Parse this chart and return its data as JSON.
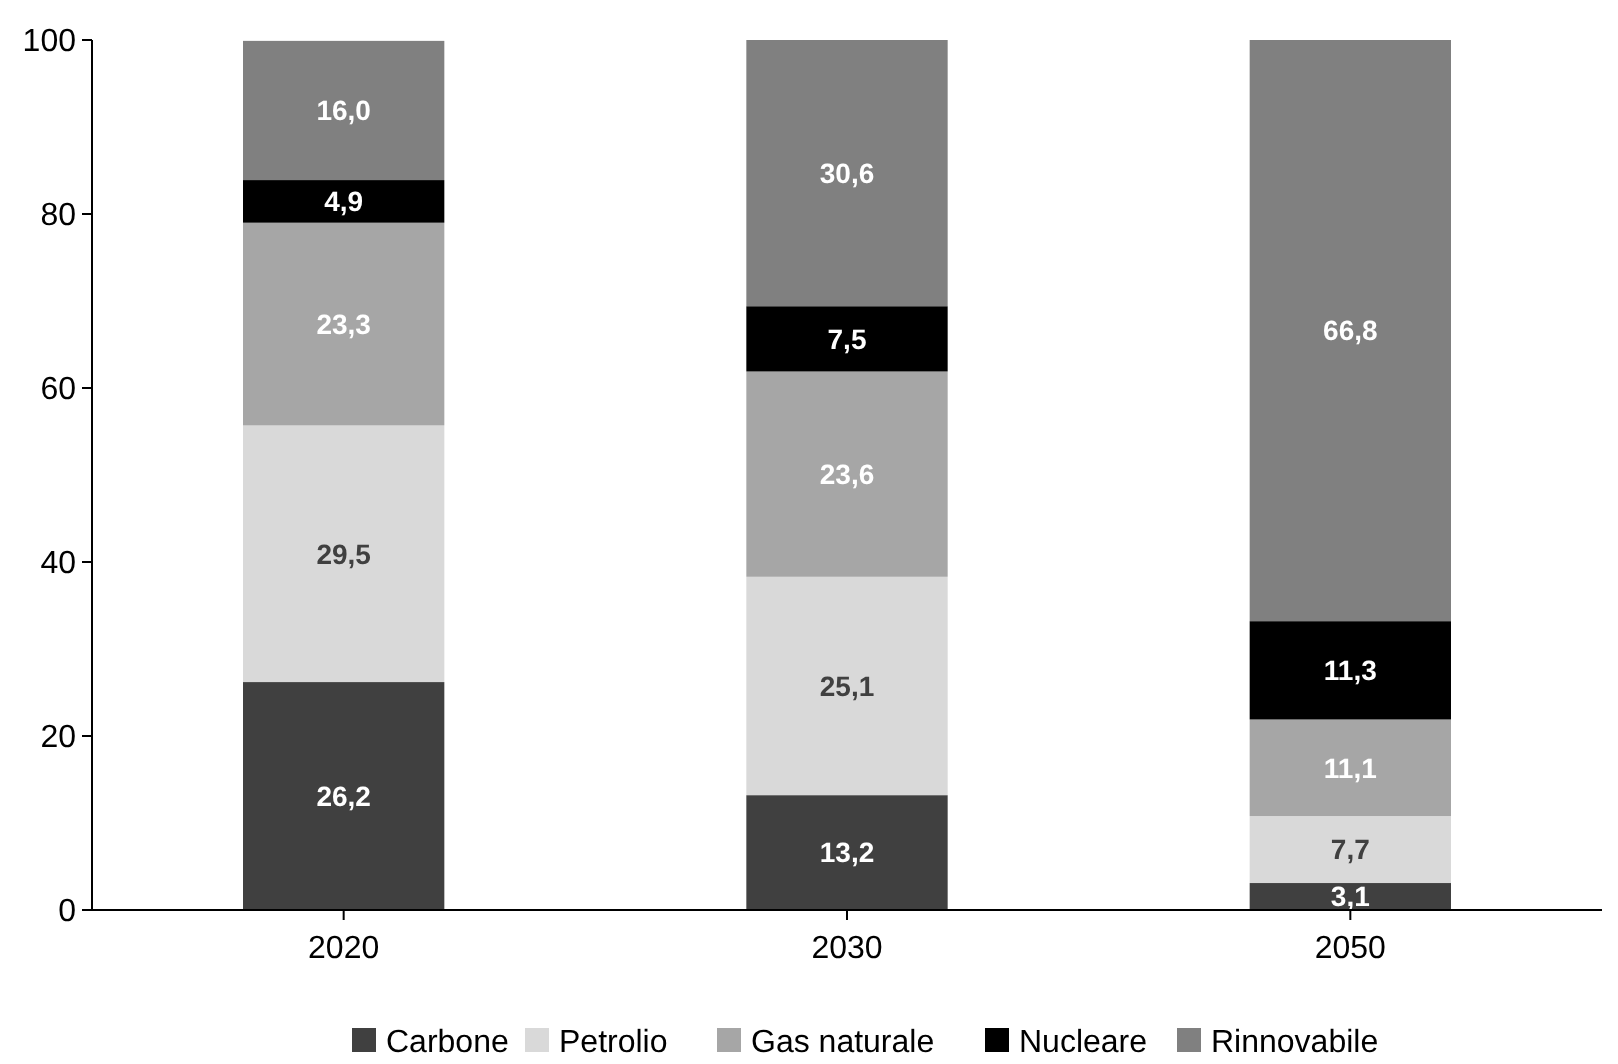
{
  "chart_data": {
    "type": "bar",
    "stacked": true,
    "categories": [
      "2020",
      "2030",
      "2050"
    ],
    "ylim": [
      0,
      100
    ],
    "yticks": [
      0,
      20,
      40,
      60,
      80,
      100
    ],
    "grid": false,
    "legend": "bottom",
    "series": [
      {
        "name": "Carbone",
        "color": "#404040",
        "values": [
          26.2,
          13.2,
          3.1
        ],
        "value_labels": [
          "26,2",
          "13,2",
          "3,1"
        ]
      },
      {
        "name": "Petrolio",
        "color": "#d9d9d9",
        "values": [
          29.5,
          25.1,
          7.7
        ],
        "value_labels": [
          "29,5",
          "25,1",
          "7,7"
        ]
      },
      {
        "name": "Gas naturale",
        "color": "#a6a6a6",
        "values": [
          23.3,
          23.6,
          11.1
        ],
        "value_labels": [
          "23,3",
          "23,6",
          "11,1"
        ]
      },
      {
        "name": "Nucleare",
        "color": "#000000",
        "values": [
          4.9,
          7.5,
          11.3
        ],
        "value_labels": [
          "4,9",
          "7,5",
          "11,3"
        ]
      },
      {
        "name": "Rinnovabile",
        "color": "#808080",
        "values": [
          16.0,
          30.6,
          66.8
        ],
        "value_labels": [
          "16,0",
          "30,6",
          "66,8"
        ]
      }
    ]
  }
}
